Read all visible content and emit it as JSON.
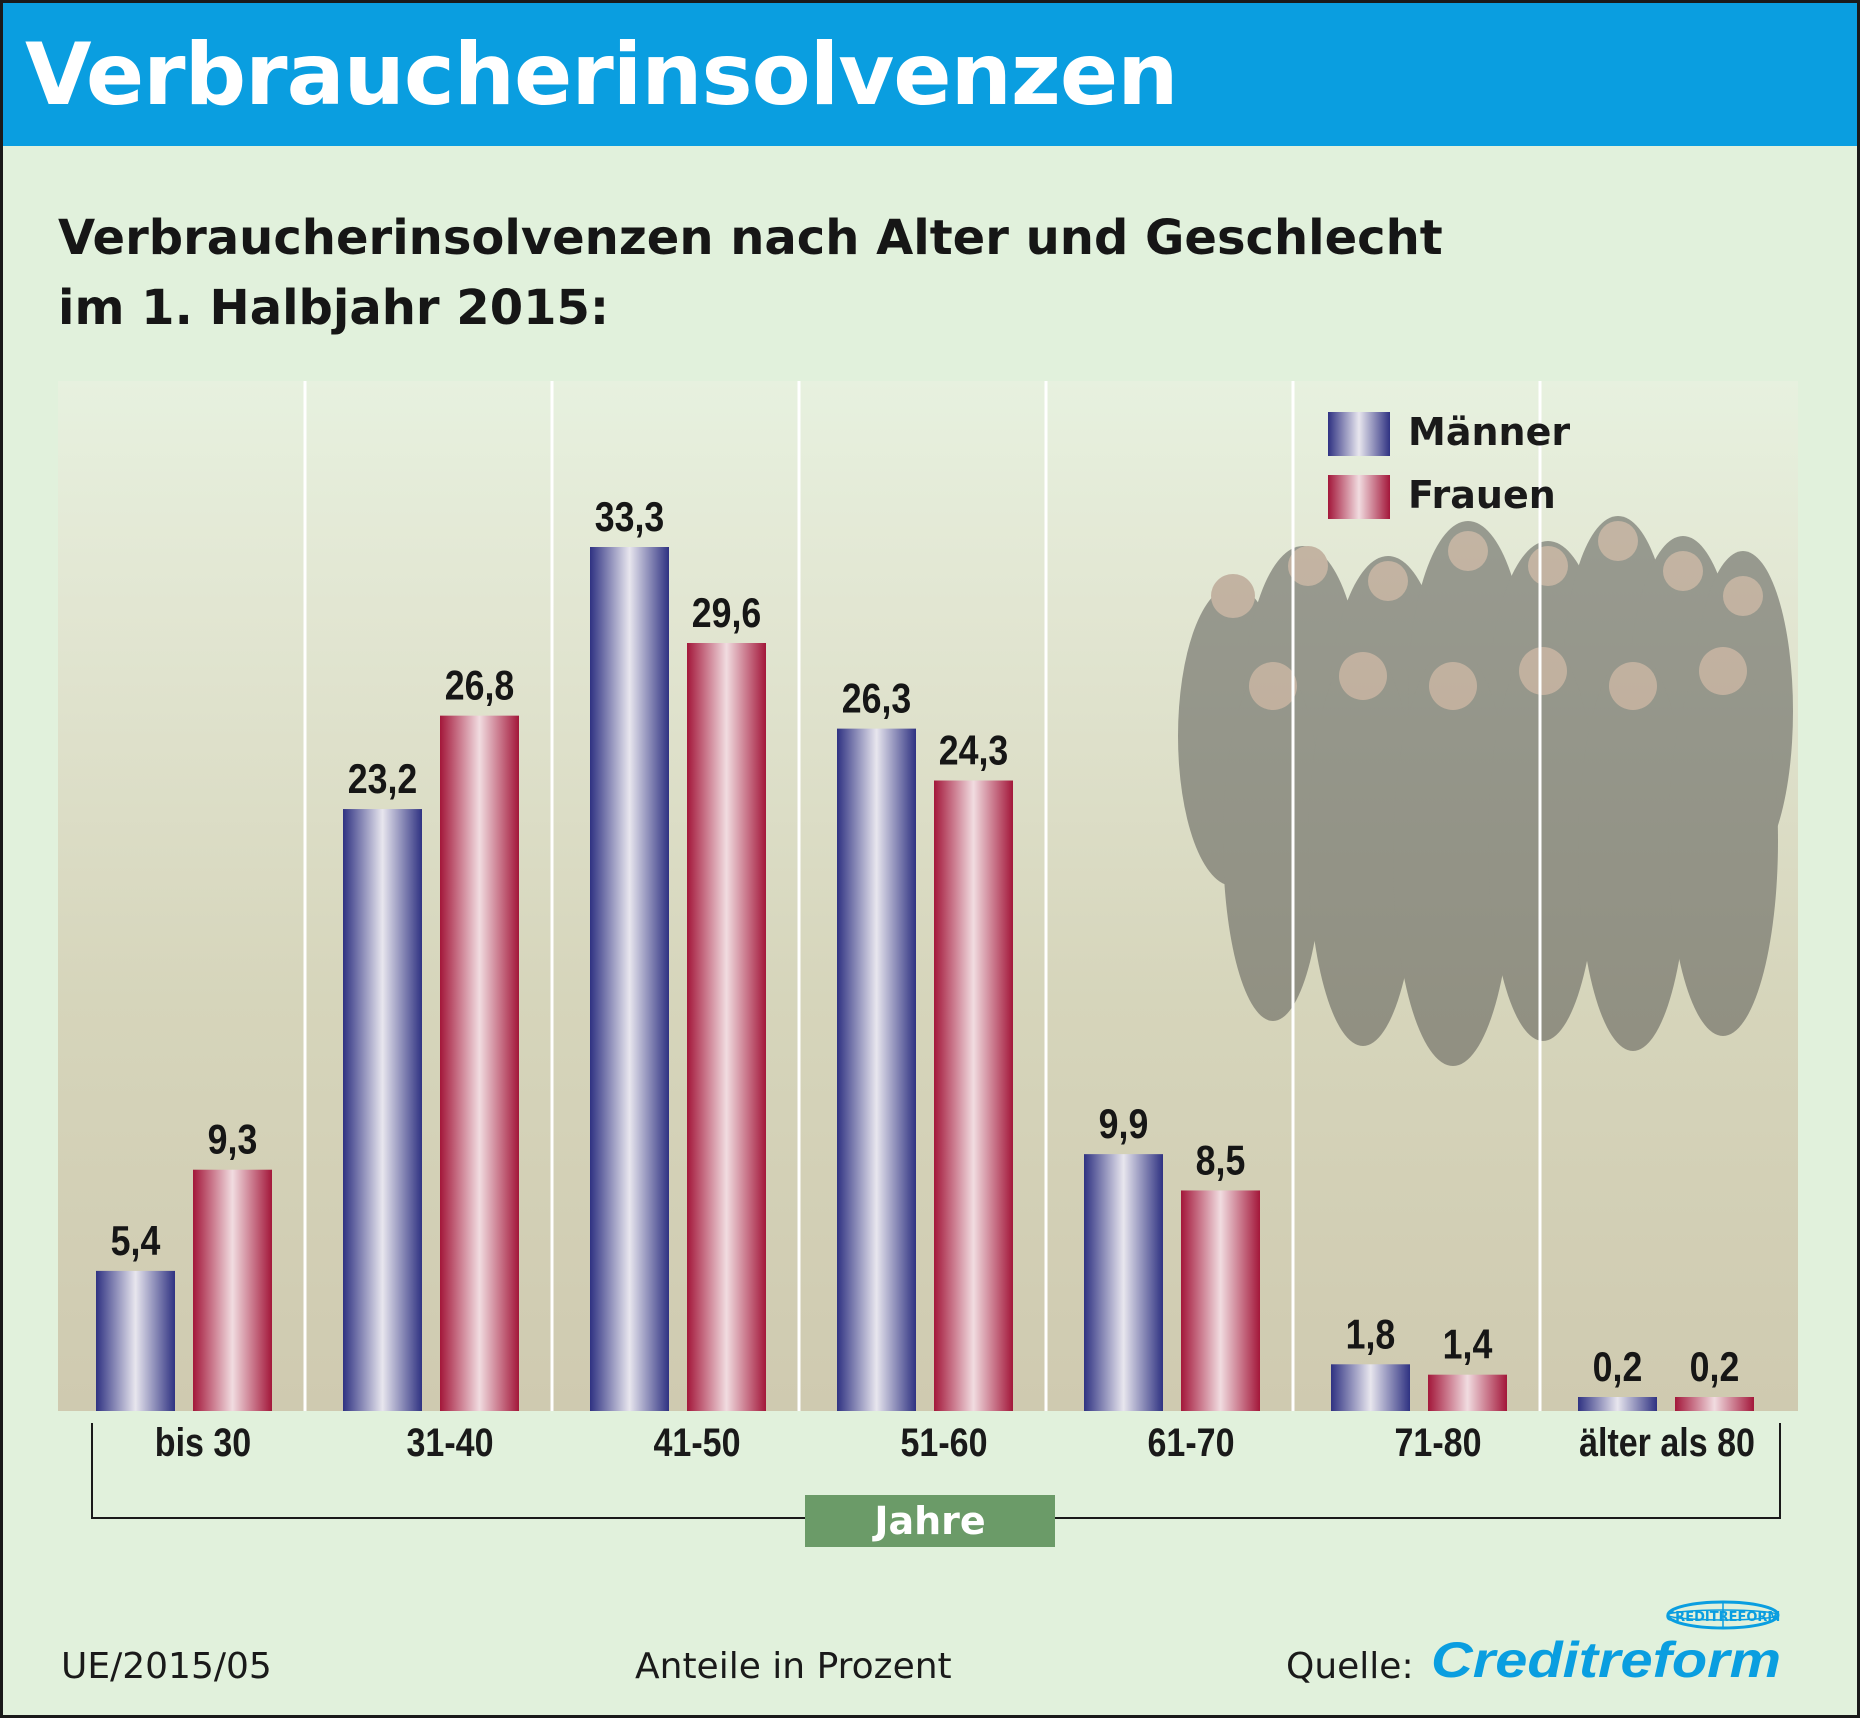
{
  "header": {
    "title": "Verbraucherinsolvenzen"
  },
  "subtitle": {
    "line1": "Verbraucherinsolvenzen nach Alter und Geschlecht",
    "line2": "im 1. Halbjahr 2015:"
  },
  "colors": {
    "header": "#0a9ee0",
    "background": "#e1f1dc",
    "maenner": "#34368a",
    "frauen": "#a81a3c",
    "axis_box": "#6b9b68",
    "brand": "#0a9ee0"
  },
  "chart_data": {
    "type": "bar",
    "title": "Verbraucherinsolvenzen nach Alter und Geschlecht im 1. Halbjahr 2015:",
    "xlabel": "Jahre",
    "ylabel": "",
    "unit_note": "Anteile in Prozent",
    "ylim": [
      0,
      37
    ],
    "grid": false,
    "legend_position": "top-right",
    "categories": [
      "bis 30",
      "31-40",
      "41-50",
      "51-60",
      "61-70",
      "71-80",
      "älter als 80"
    ],
    "series": [
      {
        "name": "Männer",
        "values": [
          5.4,
          23.2,
          33.3,
          26.3,
          9.9,
          1.8,
          0.2
        ],
        "labels": [
          "5,4",
          "23,2",
          "33,3",
          "26,3",
          "9,9",
          "1,8",
          "0,2"
        ]
      },
      {
        "name": "Frauen",
        "values": [
          9.3,
          26.8,
          29.6,
          24.3,
          8.5,
          1.4,
          0.2
        ],
        "labels": [
          "9,3",
          "26,8",
          "29,6",
          "24,3",
          "8,5",
          "1,4",
          "0,2"
        ]
      }
    ]
  },
  "footer": {
    "code": "UE/2015/05",
    "note": "Anteile in Prozent",
    "source_label": "Quelle:",
    "brand": "Creditreform",
    "brand_ring_text": "CREDITREFORM"
  }
}
